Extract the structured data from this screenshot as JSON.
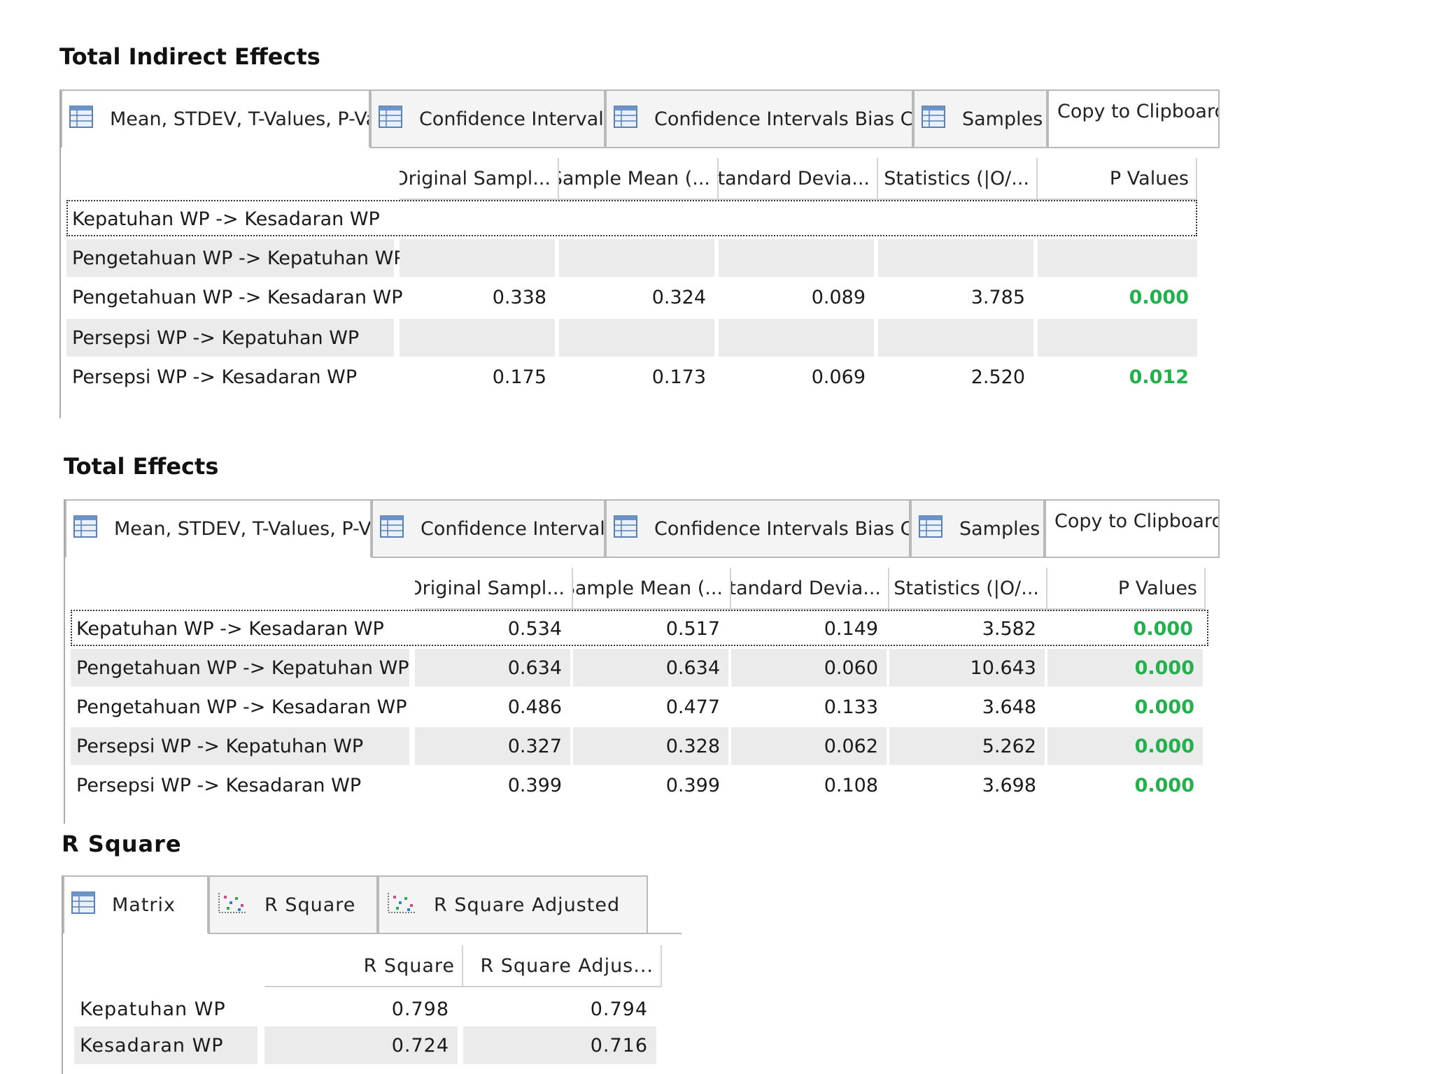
{
  "tab_labels": {
    "mean": "Mean, STDEV, T-Values, P-Val...",
    "ci": "Confidence Intervals",
    "cibc": "Confidence Intervals Bias Co...",
    "samples": "Samples",
    "copy": "Copy to Clipboard:"
  },
  "table_headers": [
    "Original Sampl...",
    "Sample Mean (...",
    "Standard Devia...",
    "T Statistics (|O/...",
    "P Values"
  ],
  "indirect": {
    "title": "Total Indirect Effects",
    "rows": [
      {
        "label": "Kepatuhan WP -> Kesadaran WP",
        "v": [
          "",
          "",
          "",
          "",
          ""
        ]
      },
      {
        "label": "Pengetahuan WP -> Kepatuhan WP",
        "v": [
          "",
          "",
          "",
          "",
          ""
        ]
      },
      {
        "label": "Pengetahuan WP -> Kesadaran WP",
        "v": [
          "0.338",
          "0.324",
          "0.089",
          "3.785",
          "0.000"
        ]
      },
      {
        "label": "Persepsi WP -> Kepatuhan WP",
        "v": [
          "",
          "",
          "",
          "",
          ""
        ]
      },
      {
        "label": "Persepsi WP -> Kesadaran WP",
        "v": [
          "0.175",
          "0.173",
          "0.069",
          "2.520",
          "0.012"
        ]
      }
    ]
  },
  "total": {
    "title": "Total Effects",
    "rows": [
      {
        "label": "Kepatuhan WP -> Kesadaran WP",
        "v": [
          "0.534",
          "0.517",
          "0.149",
          "3.582",
          "0.000"
        ]
      },
      {
        "label": "Pengetahuan WP -> Kepatuhan WP",
        "v": [
          "0.634",
          "0.634",
          "0.060",
          "10.643",
          "0.000"
        ]
      },
      {
        "label": "Pengetahuan WP -> Kesadaran WP",
        "v": [
          "0.486",
          "0.477",
          "0.133",
          "3.648",
          "0.000"
        ]
      },
      {
        "label": "Persepsi WP -> Kepatuhan WP",
        "v": [
          "0.327",
          "0.328",
          "0.062",
          "5.262",
          "0.000"
        ]
      },
      {
        "label": "Persepsi WP -> Kesadaran WP",
        "v": [
          "0.399",
          "0.399",
          "0.108",
          "3.698",
          "0.000"
        ]
      }
    ]
  },
  "rsquare": {
    "title": "R Square",
    "tabs": [
      "Matrix",
      "R Square",
      "R Square Adjusted"
    ],
    "headers": [
      "R Square",
      "R Square Adjus..."
    ],
    "rows": [
      {
        "label": "Kepatuhan WP",
        "v": [
          "0.798",
          "0.794"
        ]
      },
      {
        "label": "Kesadaran WP",
        "v": [
          "0.724",
          "0.716"
        ]
      }
    ]
  },
  "colors": {
    "pvalue_significant": "#22b14c",
    "row_shade": "#ebebeb",
    "tab_border": "#b9b9b9"
  },
  "icons": {
    "table_tab": "table-icon",
    "chart_tab": "scatter-chart-icon"
  }
}
